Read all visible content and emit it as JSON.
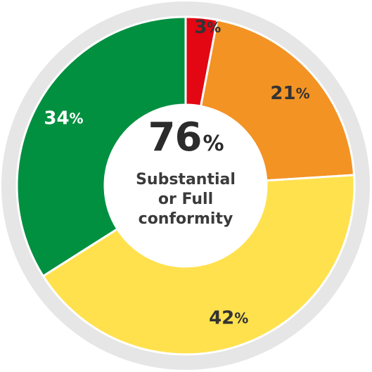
{
  "chart_data": {
    "type": "pie",
    "variant": "donut",
    "start": "top",
    "direction": "clockwise",
    "slices": [
      {
        "label": "3%",
        "value": 3,
        "color": "#e30613"
      },
      {
        "label": "21%",
        "value": 21,
        "color": "#f39324"
      },
      {
        "label": "42%",
        "value": 42,
        "color": "#ffe14d"
      },
      {
        "label": "34%",
        "value": 34,
        "color": "#009040"
      }
    ],
    "label_colors": [
      "#333333",
      "#333333",
      "#333333",
      "#ffffff"
    ],
    "ring_background_color": "#e6e6e6"
  },
  "center": {
    "value": "76",
    "unit": "%",
    "caption_lines": [
      "Substantial",
      "or Full",
      "conformity"
    ]
  }
}
